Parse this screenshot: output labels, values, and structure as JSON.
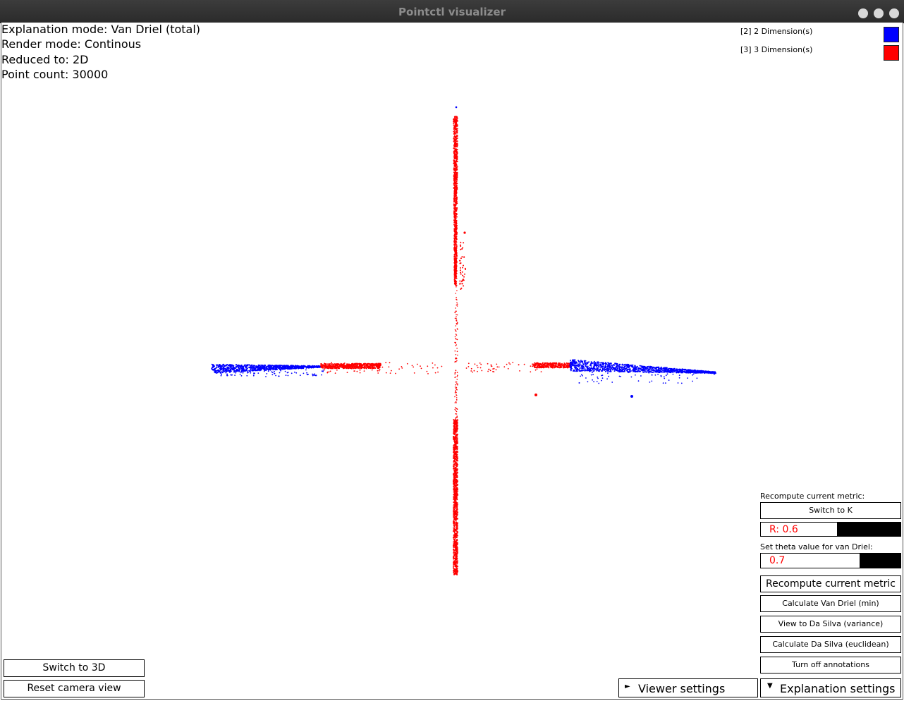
{
  "window": {
    "title": "Pointctl visualizer"
  },
  "info": {
    "explanation_mode": "Explanation mode: Van Driel (total)",
    "render_mode": "Render mode: Continous",
    "reduced_to": "Reduced to: 2D",
    "point_count": "Point count: 30000"
  },
  "legend": [
    {
      "label": "[2] 2 Dimension(s)",
      "color": "#0000ff"
    },
    {
      "label": "[3] 3 Dimension(s)",
      "color": "#ff0000"
    }
  ],
  "panel": {
    "recompute_label": "Recompute current metric:",
    "switch_k_button": "Switch to K",
    "r_input_value": "R: 0.6",
    "r_input_fill": 0.6,
    "theta_label": "Set theta value for van Driel:",
    "theta_input_value": "0.7",
    "theta_input_fill": 0.7,
    "recompute_button": "Recompute current metric",
    "van_driel_min_button": "Calculate Van Driel (min)",
    "da_silva_variance_button": "View to Da Silva (variance)",
    "da_silva_euclidean_button": "Calculate Da Silva (euclidean)",
    "annotations_button": "Turn off annotations"
  },
  "bottom": {
    "switch_3d_button": "Switch to 3D",
    "reset_camera_button": "Reset camera view",
    "viewer_settings_button": "Viewer settings",
    "viewer_settings_arrow": "►",
    "explanation_settings_button": "Explanation settings",
    "explanation_settings_arrow": "▼"
  },
  "colors": {
    "dim2": "#0000ff",
    "dim3": "#ff0000"
  }
}
